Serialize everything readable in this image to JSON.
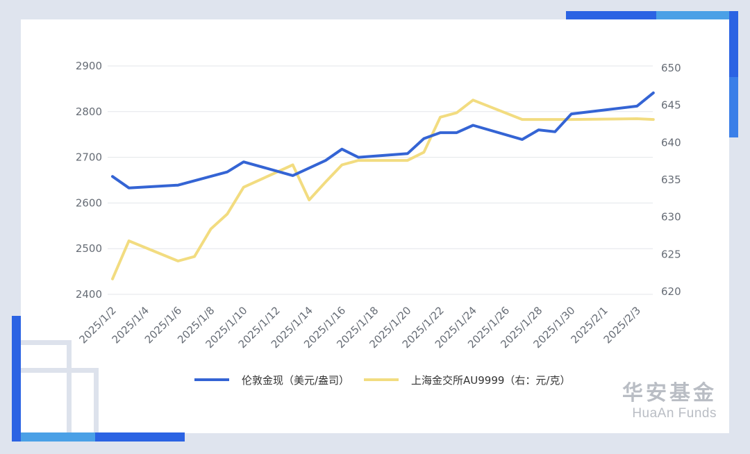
{
  "brand": {
    "name_cn": "华安基金",
    "name_en": "HuaAn Funds"
  },
  "colors": {
    "background": "#dfe4ee",
    "accent_blue": "#2b63e3",
    "accent_light_blue": "#4aa0e6",
    "series_left": "#3464d4",
    "series_right": "#f2dc80"
  },
  "chart_data": {
    "type": "line",
    "title": "",
    "x_tick_labels": [
      "2025/1/2",
      "2025/1/4",
      "2025/1/6",
      "2025/1/8",
      "2025/1/10",
      "2025/1/12",
      "2025/1/14",
      "2025/1/16",
      "2025/1/18",
      "2025/1/20",
      "2025/1/22",
      "2025/1/24",
      "2025/1/26",
      "2025/1/28",
      "2025/1/30",
      "2025/2/1",
      "2025/2/3"
    ],
    "y_left": {
      "ticks": [
        2400,
        2500,
        2600,
        2700,
        2800,
        2900
      ],
      "range": [
        2400,
        2900
      ]
    },
    "y_right": {
      "ticks": [
        620,
        625,
        630,
        635,
        640,
        645,
        650
      ],
      "range": [
        620,
        650
      ]
    },
    "legend_position": "bottom",
    "grid": "horizontal",
    "series": [
      {
        "name": "伦敦金现（美元/盎司）",
        "axis": "left",
        "points": [
          [
            "2025/1/2",
            2658
          ],
          [
            "2025/1/3",
            2633
          ],
          [
            "2025/1/6",
            2639
          ],
          [
            "2025/1/9",
            2668
          ],
          [
            "2025/1/10",
            2690
          ],
          [
            "2025/1/13",
            2660
          ],
          [
            "2025/1/15",
            2693
          ],
          [
            "2025/1/16",
            2718
          ],
          [
            "2025/1/17",
            2700
          ],
          [
            "2025/1/20",
            2708
          ],
          [
            "2025/1/21",
            2741
          ],
          [
            "2025/1/22",
            2754
          ],
          [
            "2025/1/23",
            2754
          ],
          [
            "2025/1/24",
            2770
          ],
          [
            "2025/1/27",
            2739
          ],
          [
            "2025/1/28",
            2760
          ],
          [
            "2025/1/29",
            2756
          ],
          [
            "2025/1/30",
            2795
          ],
          [
            "2025/2/3",
            2812
          ],
          [
            "2025/2/4",
            2841
          ]
        ]
      },
      {
        "name": "上海金交所AU9999（右：元/克）",
        "axis": "right",
        "points": [
          [
            "2025/1/2",
            621.7
          ],
          [
            "2025/1/3",
            626.8
          ],
          [
            "2025/1/6",
            624.1
          ],
          [
            "2025/1/7",
            624.7
          ],
          [
            "2025/1/8",
            628.4
          ],
          [
            "2025/1/9",
            630.4
          ],
          [
            "2025/1/10",
            634.0
          ],
          [
            "2025/1/13",
            637.0
          ],
          [
            "2025/1/14",
            632.3
          ],
          [
            "2025/1/15",
            634.7
          ],
          [
            "2025/1/16",
            637.0
          ],
          [
            "2025/1/17",
            637.6
          ],
          [
            "2025/1/20",
            637.6
          ],
          [
            "2025/1/21",
            638.7
          ],
          [
            "2025/1/22",
            643.4
          ],
          [
            "2025/1/23",
            644.0
          ],
          [
            "2025/1/24",
            645.7
          ],
          [
            "2025/1/27",
            643.1
          ],
          [
            "2025/1/28",
            643.1
          ],
          [
            "2025/1/30",
            643.1
          ],
          [
            "2025/2/3",
            643.2
          ],
          [
            "2025/2/4",
            643.1
          ]
        ]
      }
    ]
  }
}
